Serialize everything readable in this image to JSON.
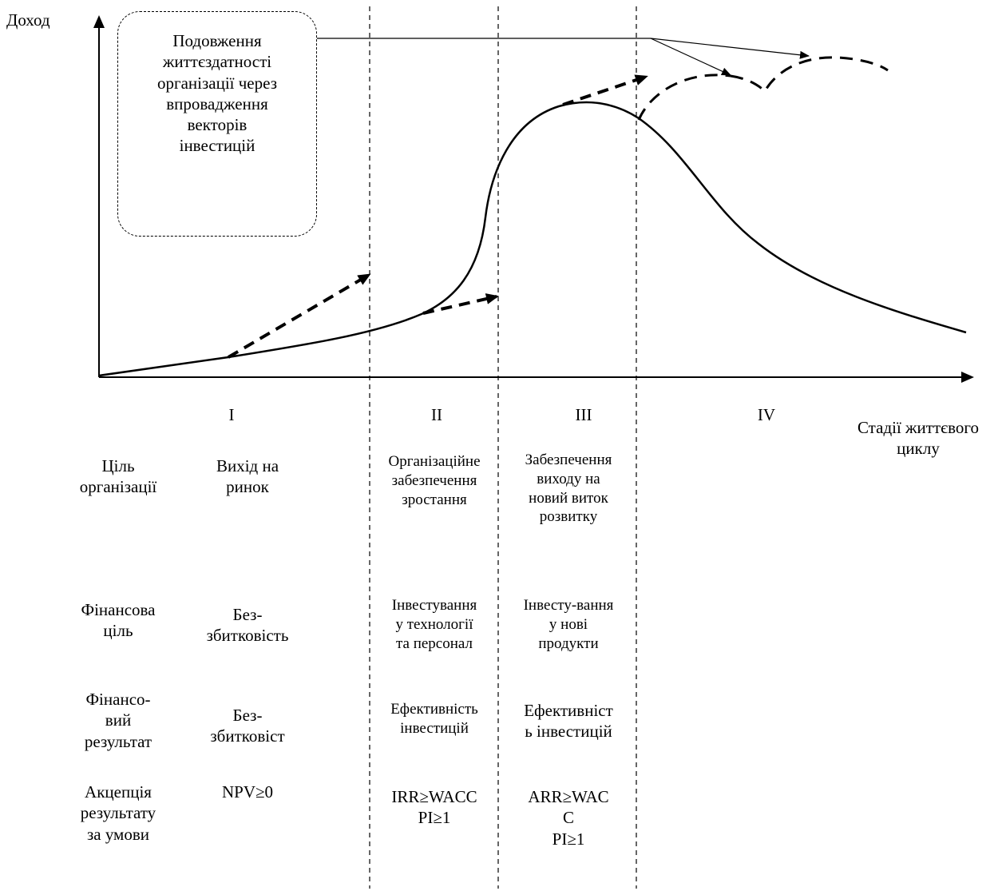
{
  "axes": {
    "y_label": "Доход",
    "x_label": "Стадії життєвого\nциклу"
  },
  "stages": [
    "I",
    "II",
    "III",
    "IV"
  ],
  "callout": "Подовження\nжиттєздатності\nорганізації через\nвпровадження\nвекторів\nінвестицій",
  "rows": {
    "goal": {
      "label": "Ціль\nорганізації",
      "s1": "Вихід на\nринок",
      "s2": "Організаційне\nзабезпечення\nзростання",
      "s3": "Забезпечення\nвиходу на\nновий виток\nрозвитку"
    },
    "fin_goal": {
      "label": "Фінансова\nціль",
      "s1": "Без-\nзбитковість",
      "s2": "Інвестування\nу технології\nта персонал",
      "s3": "Інвесту-вання\nу нові\nпродукти"
    },
    "fin_result": {
      "label": "Фінансо-\nвий\nрезультат",
      "s1": "Без-\nзбитковіст",
      "s2": "Ефективність\nінвестицій",
      "s3": "Ефективніст\nь інвестицій"
    },
    "acceptance": {
      "label": "Акцепція\nрезультату\nза умови",
      "s1": "NPV≥0",
      "s2": "IRR≥WACC\nPI≥1",
      "s3": "ARR≥WAC\nC\nPI≥1"
    }
  },
  "colors": {
    "ink": "#000000",
    "background": "#ffffff"
  }
}
